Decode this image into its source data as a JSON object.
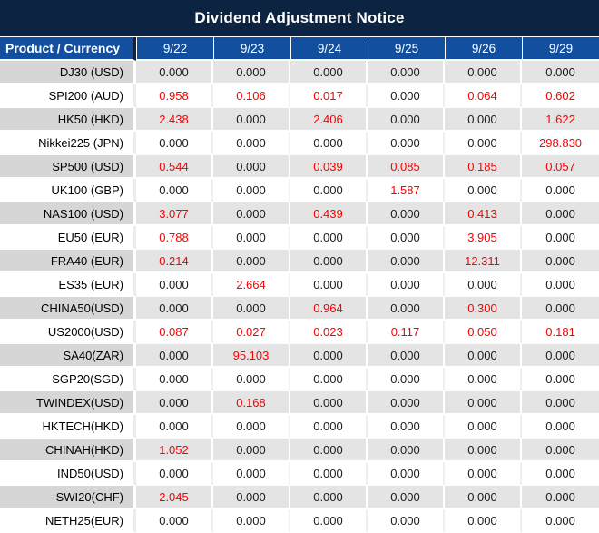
{
  "title": "Dividend Adjustment Notice",
  "colors": {
    "title_bar": "#0d2342",
    "header_blue": "#124f9e",
    "stripe_label_gray": "#d6d6d6",
    "stripe_value_gray": "#e4e4e4",
    "negative_red": "#fb0000",
    "value_black": "#1c1c1c"
  },
  "table": {
    "header": [
      "Product / Currency",
      "9/22",
      "9/23",
      "9/24",
      "9/25",
      "9/26",
      "9/29"
    ],
    "rows": [
      {
        "label": "DJ30 (USD)",
        "values": [
          "0.000",
          "0.000",
          "0.000",
          "0.000",
          "0.000",
          "0.000"
        ],
        "red": [
          false,
          false,
          false,
          false,
          false,
          false
        ]
      },
      {
        "label": "SPI200 (AUD)",
        "values": [
          "0.958",
          "0.106",
          "0.017",
          "0.000",
          "0.064",
          "0.602"
        ],
        "red": [
          true,
          true,
          true,
          false,
          true,
          true
        ]
      },
      {
        "label": "HK50 (HKD)",
        "values": [
          "2.438",
          "0.000",
          "2.406",
          "0.000",
          "0.000",
          "1.622"
        ],
        "red": [
          true,
          false,
          true,
          false,
          false,
          true
        ]
      },
      {
        "label": "Nikkei225 (JPN)",
        "values": [
          "0.000",
          "0.000",
          "0.000",
          "0.000",
          "0.000",
          "298.830"
        ],
        "red": [
          false,
          false,
          false,
          false,
          false,
          true
        ]
      },
      {
        "label": "SP500 (USD)",
        "values": [
          "0.544",
          "0.000",
          "0.039",
          "0.085",
          "0.185",
          "0.057"
        ],
        "red": [
          true,
          false,
          true,
          true,
          true,
          true
        ]
      },
      {
        "label": "UK100 (GBP)",
        "values": [
          "0.000",
          "0.000",
          "0.000",
          "1.587",
          "0.000",
          "0.000"
        ],
        "red": [
          false,
          false,
          false,
          true,
          false,
          false
        ]
      },
      {
        "label": "NAS100 (USD)",
        "values": [
          "3.077",
          "0.000",
          "0.439",
          "0.000",
          "0.413",
          "0.000"
        ],
        "red": [
          true,
          false,
          true,
          false,
          true,
          false
        ]
      },
      {
        "label": "EU50 (EUR)",
        "values": [
          "0.788",
          "0.000",
          "0.000",
          "0.000",
          "3.905",
          "0.000"
        ],
        "red": [
          true,
          false,
          false,
          false,
          true,
          false
        ]
      },
      {
        "label": "FRA40 (EUR)",
        "values": [
          "0.214",
          "0.000",
          "0.000",
          "0.000",
          "12.311",
          "0.000"
        ],
        "red": [
          true,
          false,
          false,
          false,
          true,
          false
        ]
      },
      {
        "label": "ES35 (EUR)",
        "values": [
          "0.000",
          "2.664",
          "0.000",
          "0.000",
          "0.000",
          "0.000"
        ],
        "red": [
          false,
          true,
          false,
          false,
          false,
          false
        ]
      },
      {
        "label": "CHINA50(USD)",
        "values": [
          "0.000",
          "0.000",
          "0.964",
          "0.000",
          "0.300",
          "0.000"
        ],
        "red": [
          false,
          false,
          true,
          false,
          true,
          false
        ]
      },
      {
        "label": "US2000(USD)",
        "values": [
          "0.087",
          "0.027",
          "0.023",
          "0.117",
          "0.050",
          "0.181"
        ],
        "red": [
          true,
          true,
          true,
          true,
          true,
          true
        ]
      },
      {
        "label": "SA40(ZAR)",
        "values": [
          "0.000",
          "95.103",
          "0.000",
          "0.000",
          "0.000",
          "0.000"
        ],
        "red": [
          false,
          true,
          false,
          false,
          false,
          false
        ]
      },
      {
        "label": "SGP20(SGD)",
        "values": [
          "0.000",
          "0.000",
          "0.000",
          "0.000",
          "0.000",
          "0.000"
        ],
        "red": [
          false,
          false,
          false,
          false,
          false,
          false
        ]
      },
      {
        "label": "TWINDEX(USD)",
        "values": [
          "0.000",
          "0.168",
          "0.000",
          "0.000",
          "0.000",
          "0.000"
        ],
        "red": [
          false,
          true,
          false,
          false,
          false,
          false
        ]
      },
      {
        "label": "HKTECH(HKD)",
        "values": [
          "0.000",
          "0.000",
          "0.000",
          "0.000",
          "0.000",
          "0.000"
        ],
        "red": [
          false,
          false,
          false,
          false,
          false,
          false
        ]
      },
      {
        "label": "CHINAH(HKD)",
        "values": [
          "1.052",
          "0.000",
          "0.000",
          "0.000",
          "0.000",
          "0.000"
        ],
        "red": [
          true,
          false,
          false,
          false,
          false,
          false
        ]
      },
      {
        "label": "IND50(USD)",
        "values": [
          "0.000",
          "0.000",
          "0.000",
          "0.000",
          "0.000",
          "0.000"
        ],
        "red": [
          false,
          false,
          false,
          false,
          false,
          false
        ]
      },
      {
        "label": "SWI20(CHF)",
        "values": [
          "2.045",
          "0.000",
          "0.000",
          "0.000",
          "0.000",
          "0.000"
        ],
        "red": [
          true,
          false,
          false,
          false,
          false,
          false
        ]
      },
      {
        "label": "NETH25(EUR)",
        "values": [
          "0.000",
          "0.000",
          "0.000",
          "0.000",
          "0.000",
          "0.000"
        ],
        "red": [
          false,
          false,
          false,
          false,
          false,
          false
        ]
      }
    ]
  }
}
